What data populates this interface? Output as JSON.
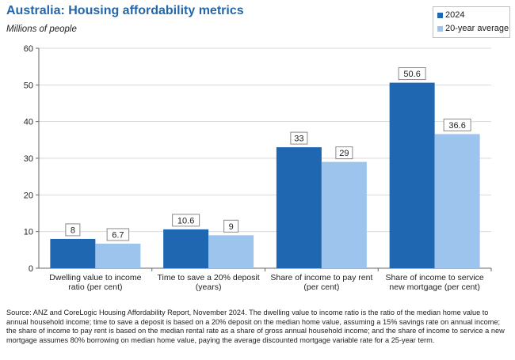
{
  "header": {
    "title": "Australia: Housing affordability metrics",
    "subtitle": "Millions of people"
  },
  "colors": {
    "series_2024": "#1f67b1",
    "series_avg": "#9cc4ec",
    "title": "#2367a8"
  },
  "chart_data": {
    "type": "bar",
    "title": "Australia: Housing affordability metrics",
    "ylabel": "Millions of people",
    "xlabel": "",
    "ylim": [
      0,
      60
    ],
    "yticks": [
      0,
      10,
      20,
      30,
      40,
      50,
      60
    ],
    "categories": [
      [
        "Dwelling value to income",
        "ratio (per cent)"
      ],
      [
        "Time to save a 20% deposit",
        "(years)"
      ],
      [
        "Share of income to pay rent",
        "(per cent)"
      ],
      [
        "Share of income to service",
        "new mortgage (per cent)"
      ]
    ],
    "series": [
      {
        "name": "2024",
        "values": [
          8,
          10.6,
          33,
          50.6
        ],
        "labels": [
          "8",
          "10.6",
          "33",
          "50.6"
        ]
      },
      {
        "name": "20-year average",
        "values": [
          6.7,
          9,
          29,
          36.6
        ],
        "labels": [
          "6.7",
          "9",
          "29",
          "36.6"
        ]
      }
    ],
    "legend_position": "top-right",
    "grid": true
  },
  "source": "Source: ANZ and CoreLogic Housing Affordability Report, November 2024.  The dwelling value to income ratio is the ratio of the median home value to annual household income; time to save a deposit is based on a 20% deposit on the median home value, assuming a 15% savings rate on annual income; the share of income to pay rent is based on the median rental rate as a share of gross annual household income; and the share of income to service a new mortgage assumes 80% borrowing on median home value, paying the average discounted mortgage variable rate for a 25-year term."
}
